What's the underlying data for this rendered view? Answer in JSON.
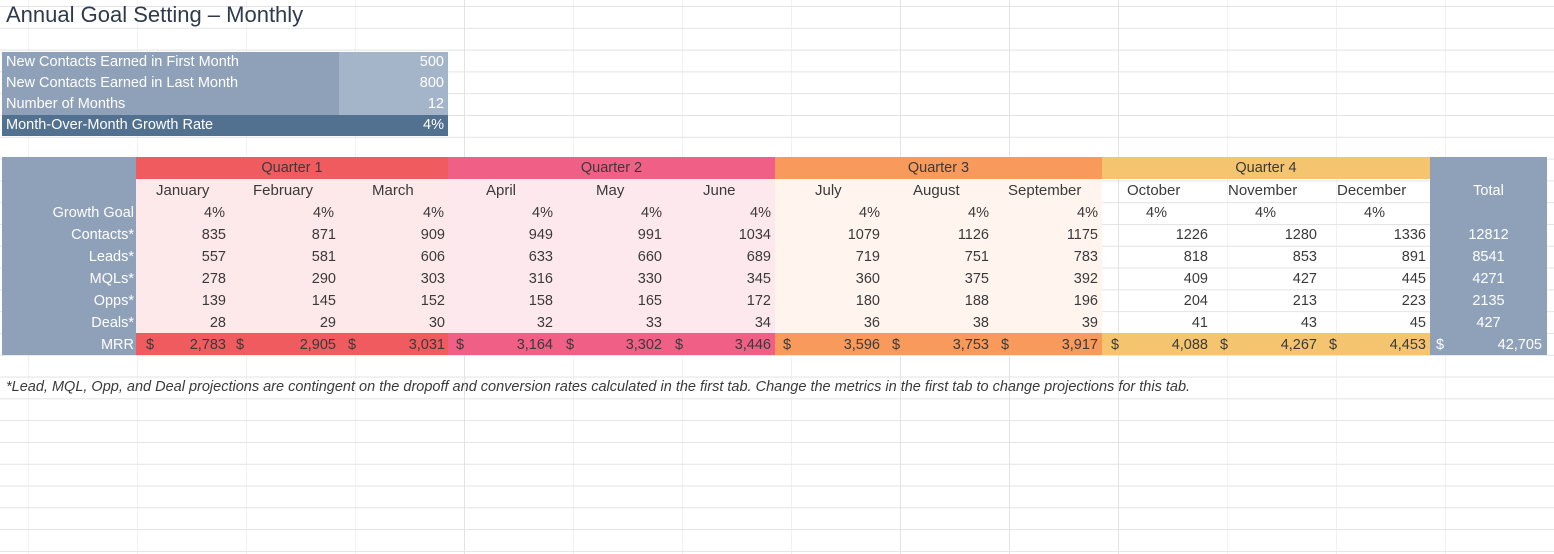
{
  "title": "Annual Goal Setting – Monthly",
  "summary": [
    {
      "label": "New Contacts Earned in First Month",
      "value": "500"
    },
    {
      "label": "New Contacts Earned in Last Month",
      "value": "800"
    },
    {
      "label": "Number of Months",
      "value": "12"
    },
    {
      "label": "Month-Over-Month Growth Rate",
      "value": "4%"
    }
  ],
  "quarters": [
    "Quarter 1",
    "Quarter 2",
    "Quarter 3",
    "Quarter 4"
  ],
  "colors": {
    "q1_header": "#ef5b5e",
    "q1_mrr": "#ef5b5e",
    "q1_body": "#fde8ea",
    "q2_header": "#ef5f86",
    "q2_mrr": "#ef5f86",
    "q2_body": "#fde8ee",
    "q3_header": "#f89a5c",
    "q3_mrr": "#f89a5c",
    "q3_body": "#fff4ee",
    "q4_header": "#f5c46e",
    "q4_mrr": "#f5c46e",
    "q4_body": "#ffffff",
    "label_column": "#8ea1b9",
    "summary_dark": "#52708f"
  },
  "months": [
    "January",
    "February",
    "March",
    "April",
    "May",
    "June",
    "July",
    "August",
    "September",
    "October",
    "November",
    "December"
  ],
  "total_header": "Total",
  "row_labels": [
    "Growth Goal",
    "Contacts*",
    "Leads*",
    "MQLs*",
    "Opps*",
    "Deals*",
    "MRR"
  ],
  "growth_goal": [
    "4%",
    "4%",
    "4%",
    "4%",
    "4%",
    "4%",
    "4%",
    "4%",
    "4%",
    "4%",
    "4%",
    "4%"
  ],
  "contacts": [
    "835",
    "871",
    "909",
    "949",
    "991",
    "1034",
    "1079",
    "1126",
    "1175",
    "1226",
    "1280",
    "1336"
  ],
  "leads": [
    "557",
    "581",
    "606",
    "633",
    "660",
    "689",
    "719",
    "751",
    "783",
    "818",
    "853",
    "891"
  ],
  "mqls": [
    "278",
    "290",
    "303",
    "316",
    "330",
    "345",
    "360",
    "375",
    "392",
    "409",
    "427",
    "445"
  ],
  "opps": [
    "139",
    "145",
    "152",
    "158",
    "165",
    "172",
    "180",
    "188",
    "196",
    "204",
    "213",
    "223"
  ],
  "deals": [
    "28",
    "29",
    "30",
    "32",
    "33",
    "34",
    "36",
    "38",
    "39",
    "41",
    "43",
    "45"
  ],
  "mrr": [
    "2,783",
    "2,905",
    "3,031",
    "3,164",
    "3,302",
    "3,446",
    "3,596",
    "3,753",
    "3,917",
    "4,088",
    "4,267",
    "4,453"
  ],
  "currency": "$",
  "totals": {
    "contacts": "12812",
    "leads": "8541",
    "mqls": "4271",
    "opps": "2135",
    "deals": "427",
    "mrr": "42,705"
  },
  "footnote": "*Lead, MQL, Opp, and Deal projections are contingent on the dropoff and conversion rates calculated in the first tab. Change the metrics in the first tab to change projections for this tab."
}
